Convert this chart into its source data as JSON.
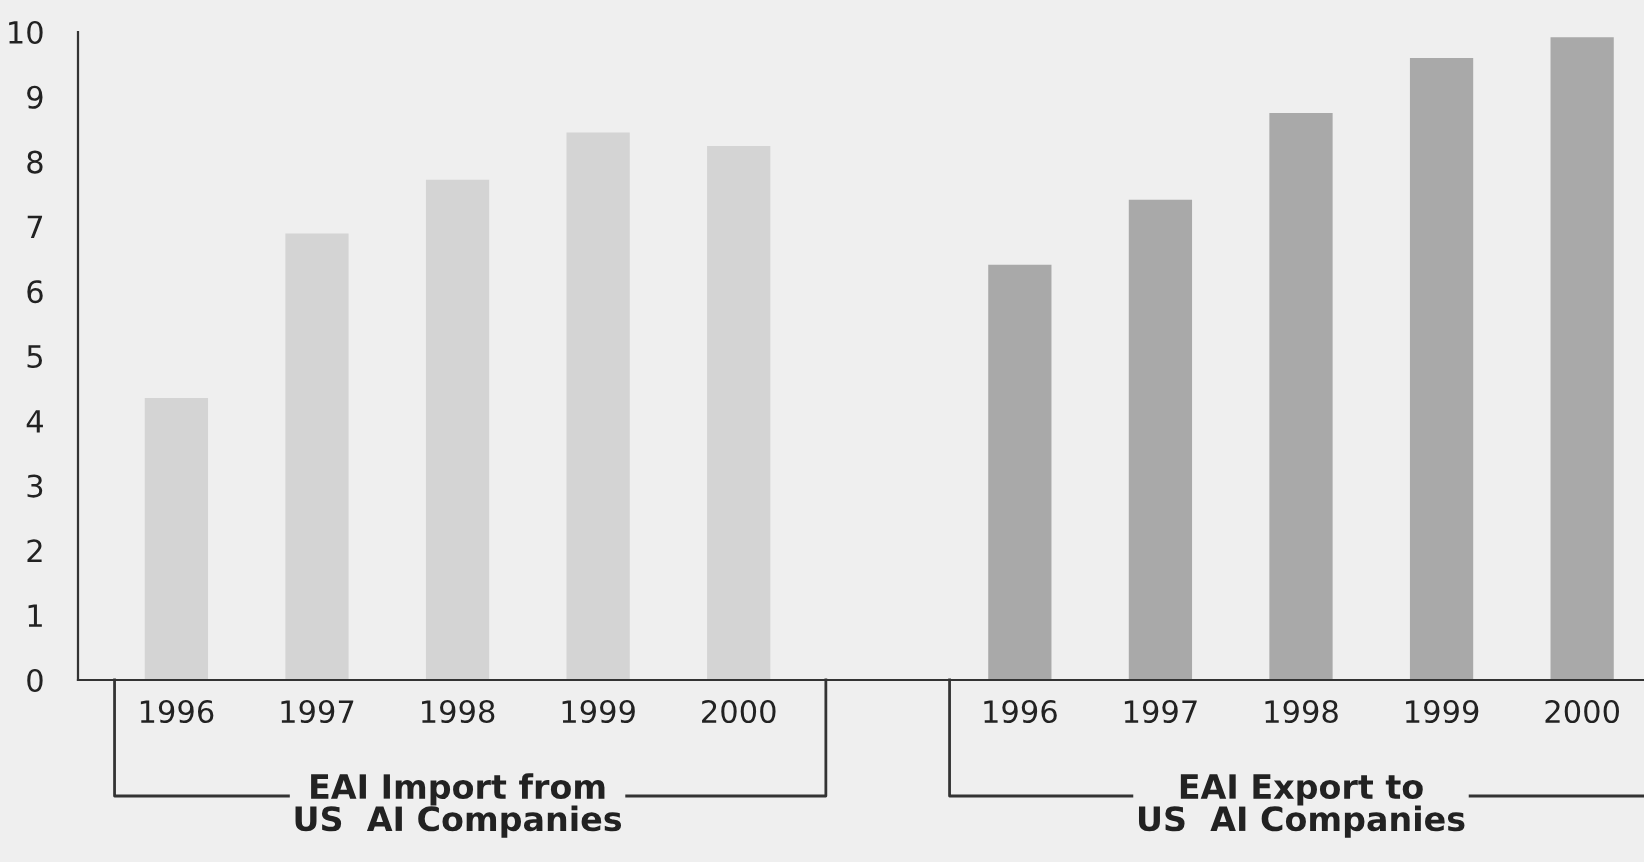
{
  "chart_data": {
    "type": "bar",
    "categories": [
      "1996",
      "1997",
      "1998",
      "1999",
      "2000",
      null,
      "1996",
      "1997",
      "1998",
      "1999",
      "2000"
    ],
    "series": [
      {
        "color": "#d4d4d4",
        "values": [
          4.35,
          6.89,
          7.72,
          8.45,
          8.24,
          null,
          null,
          null,
          null,
          null,
          null
        ]
      },
      {
        "color": "#a9a9a9",
        "values": [
          null,
          null,
          null,
          null,
          null,
          null,
          6.41,
          7.41,
          8.75,
          9.6,
          9.92
        ]
      }
    ],
    "ylim": [
      0,
      10
    ],
    "yticks": [
      0,
      1,
      2,
      3,
      4,
      5,
      6,
      7,
      8,
      9,
      10
    ],
    "grid": false,
    "legend": false,
    "annotations": [
      "EAI Import from\nUS  AI Companies",
      "EAI Export to\nUS  AI Companies"
    ]
  }
}
